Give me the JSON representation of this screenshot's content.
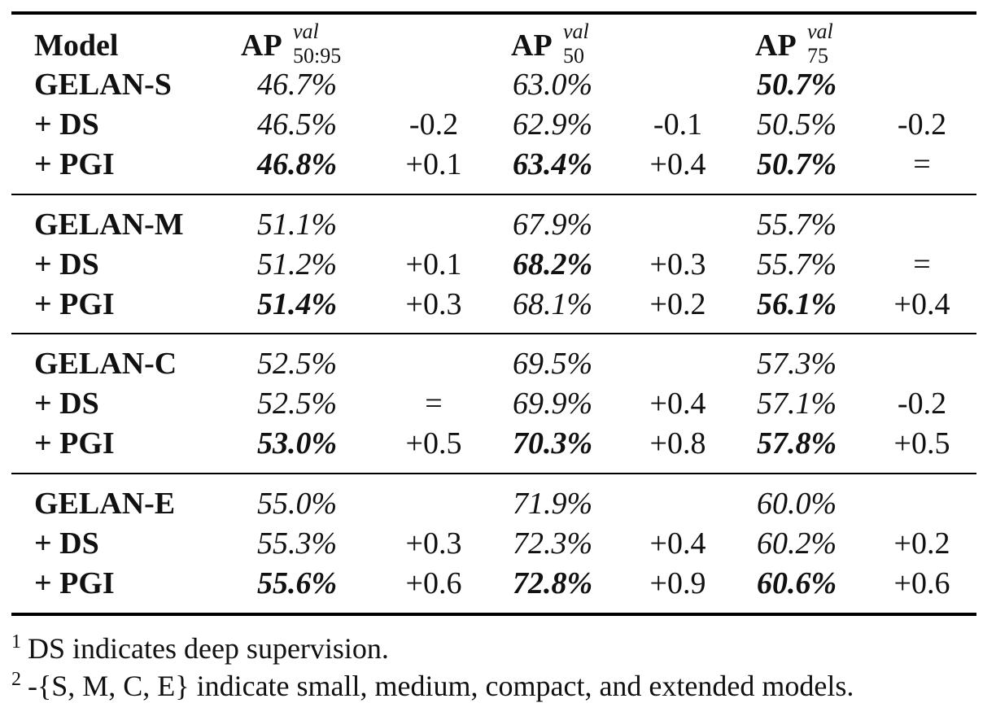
{
  "headers": {
    "model": "Model",
    "ap_main": "AP",
    "col1_sup": "val",
    "col1_sub": "50:95",
    "col2_sup": "val",
    "col2_sub": "50",
    "col3_sup": "val",
    "col3_sub": "75"
  },
  "groups": [
    {
      "rows": [
        {
          "model": "GELAN-S",
          "ap5095": "46.7%",
          "d1": "",
          "ap50": "63.0%",
          "d2": "",
          "ap75": "50.7%",
          "d3": "",
          "bold": [
            false,
            false,
            true
          ]
        },
        {
          "model": "+ DS",
          "ap5095": "46.5%",
          "d1": "-0.2",
          "ap50": "62.9%",
          "d2": "-0.1",
          "ap75": "50.5%",
          "d3": "-0.2",
          "bold": [
            false,
            false,
            false
          ]
        },
        {
          "model": "+ PGI",
          "ap5095": "46.8%",
          "d1": "+0.1",
          "ap50": "63.4%",
          "d2": "+0.4",
          "ap75": "50.7%",
          "d3": "=",
          "bold": [
            true,
            true,
            true
          ]
        }
      ]
    },
    {
      "rows": [
        {
          "model": "GELAN-M",
          "ap5095": "51.1%",
          "d1": "",
          "ap50": "67.9%",
          "d2": "",
          "ap75": "55.7%",
          "d3": "",
          "bold": [
            false,
            false,
            false
          ]
        },
        {
          "model": "+ DS",
          "ap5095": "51.2%",
          "d1": "+0.1",
          "ap50": "68.2%",
          "d2": "+0.3",
          "ap75": "55.7%",
          "d3": "=",
          "bold": [
            false,
            true,
            false
          ]
        },
        {
          "model": "+ PGI",
          "ap5095": "51.4%",
          "d1": "+0.3",
          "ap50": "68.1%",
          "d2": "+0.2",
          "ap75": "56.1%",
          "d3": "+0.4",
          "bold": [
            true,
            false,
            true
          ]
        }
      ]
    },
    {
      "rows": [
        {
          "model": "GELAN-C",
          "ap5095": "52.5%",
          "d1": "",
          "ap50": "69.5%",
          "d2": "",
          "ap75": "57.3%",
          "d3": "",
          "bold": [
            false,
            false,
            false
          ]
        },
        {
          "model": "+ DS",
          "ap5095": "52.5%",
          "d1": "=",
          "ap50": "69.9%",
          "d2": "+0.4",
          "ap75": "57.1%",
          "d3": "-0.2",
          "bold": [
            false,
            false,
            false
          ]
        },
        {
          "model": "+ PGI",
          "ap5095": "53.0%",
          "d1": "+0.5",
          "ap50": "70.3%",
          "d2": "+0.8",
          "ap75": "57.8%",
          "d3": "+0.5",
          "bold": [
            true,
            true,
            true
          ]
        }
      ]
    },
    {
      "rows": [
        {
          "model": "GELAN-E",
          "ap5095": "55.0%",
          "d1": "",
          "ap50": "71.9%",
          "d2": "",
          "ap75": "60.0%",
          "d3": "",
          "bold": [
            false,
            false,
            false
          ]
        },
        {
          "model": "+ DS",
          "ap5095": "55.3%",
          "d1": "+0.3",
          "ap50": "72.3%",
          "d2": "+0.4",
          "ap75": "60.2%",
          "d3": "+0.2",
          "bold": [
            false,
            false,
            false
          ]
        },
        {
          "model": "+ PGI",
          "ap5095": "55.6%",
          "d1": "+0.6",
          "ap50": "72.8%",
          "d2": "+0.9",
          "ap75": "60.6%",
          "d3": "+0.6",
          "bold": [
            true,
            true,
            true
          ]
        }
      ]
    }
  ],
  "footnotes": [
    {
      "mark": "1",
      "text": "DS indicates deep supervision."
    },
    {
      "mark": "2",
      "text": "-{S, M, C, E} indicate small, medium, compact, and extended models."
    }
  ]
}
